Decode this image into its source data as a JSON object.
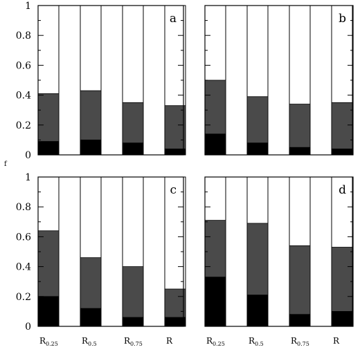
{
  "chart_data": {
    "type": "bar",
    "stacked": true,
    "ylabel": "f",
    "ylim": [
      0,
      1
    ],
    "yticks": [
      "0",
      "0.2",
      "0.4",
      "0.6",
      "0.8",
      "1"
    ],
    "categories": [
      {
        "base": "R",
        "sub": "0.25"
      },
      {
        "base": "R",
        "sub": "0.5"
      },
      {
        "base": "R",
        "sub": "0.75"
      },
      {
        "base": "R",
        "sub": ""
      }
    ],
    "colors": {
      "black": "#000000",
      "gray": "#4a4a4a",
      "white": "#ffffff",
      "axis": "#000000"
    },
    "panels": [
      {
        "label": "a",
        "black": [
          0.09,
          0.1,
          0.08,
          0.04
        ],
        "total": [
          0.41,
          0.43,
          0.35,
          0.33
        ]
      },
      {
        "label": "b",
        "black": [
          0.14,
          0.08,
          0.05,
          0.04
        ],
        "total": [
          0.5,
          0.39,
          0.34,
          0.35
        ]
      },
      {
        "label": "c",
        "black": [
          0.2,
          0.12,
          0.06,
          0.06
        ],
        "total": [
          0.64,
          0.46,
          0.4,
          0.25
        ]
      },
      {
        "label": "d",
        "black": [
          0.33,
          0.21,
          0.08,
          0.1
        ],
        "total": [
          0.71,
          0.69,
          0.54,
          0.53
        ]
      }
    ]
  }
}
